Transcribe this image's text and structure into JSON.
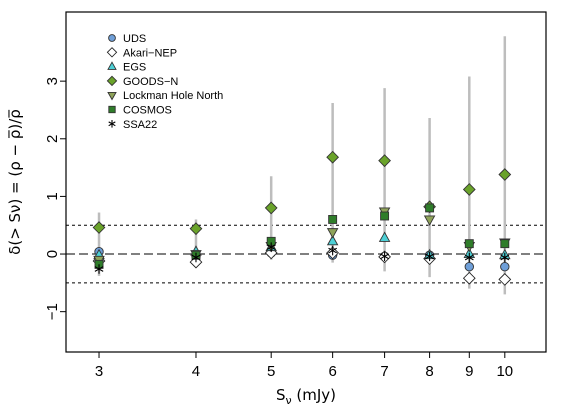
{
  "chart_data": {
    "type": "scatter",
    "title": "",
    "xlabel_main": "S",
    "xlabel_sub": "ν",
    "xlabel_rest": " (mJy)",
    "ylabel": "δ(> Sν) = (ρ − ρ̅)/ρ̅",
    "x_scale": "log",
    "xlim": [
      2.72,
      11.3
    ],
    "ylim": [
      -1.7,
      4.2
    ],
    "x_ticks": [
      3,
      4,
      5,
      6,
      7,
      8,
      9,
      10
    ],
    "x_tick_labels": [
      "3",
      "4",
      "5",
      "6",
      "7",
      "8",
      "9",
      "10"
    ],
    "y_ticks": [
      -1,
      0,
      1,
      2,
      3
    ],
    "y_tick_labels": [
      "−1",
      "0",
      "1",
      "2",
      "3"
    ],
    "reference_lines": [
      {
        "y": 0.5,
        "style": "dotted"
      },
      {
        "y": -0.5,
        "style": "dotted"
      },
      {
        "y": 0,
        "style": "dashed"
      }
    ],
    "legend_position": "top-left",
    "error_bars": [
      {
        "x": 3,
        "low": -0.38,
        "high": 0.72
      },
      {
        "x": 4,
        "low": -0.22,
        "high": 0.6
      },
      {
        "x": 5,
        "low": -0.1,
        "high": 1.35
      },
      {
        "x": 6,
        "low": -0.15,
        "high": 2.62
      },
      {
        "x": 7,
        "low": -0.3,
        "high": 2.88
      },
      {
        "x": 8,
        "low": -0.4,
        "high": 2.36
      },
      {
        "x": 9,
        "low": -0.6,
        "high": 3.08
      },
      {
        "x": 10,
        "low": -0.7,
        "high": 3.78
      }
    ],
    "series": [
      {
        "name": "UDS",
        "marker": "circle",
        "color": "#6f9fd8",
        "x": [
          3,
          4,
          5,
          6,
          7,
          8,
          9,
          10
        ],
        "y": [
          0.04,
          -0.04,
          0.02,
          -0.02,
          -0.04,
          -0.02,
          -0.22,
          -0.22
        ]
      },
      {
        "name": "Akari−NEP",
        "marker": "diamond-open",
        "color": "#ffffff",
        "x": [
          3,
          4,
          5,
          6,
          7,
          8,
          9,
          10
        ],
        "y": [
          -0.12,
          -0.14,
          0.02,
          0.02,
          -0.05,
          -0.08,
          -0.42,
          -0.44
        ]
      },
      {
        "name": "EGS",
        "marker": "triangle-up",
        "color": "#4dd0d6",
        "x": [
          3,
          4,
          5,
          6,
          7,
          8,
          9,
          10
        ],
        "y": [
          -0.02,
          0.04,
          0.12,
          0.22,
          0.28,
          -0.02,
          0.0,
          -0.02
        ]
      },
      {
        "name": "GOODS−N",
        "marker": "diamond",
        "color": "#6aa32a",
        "x": [
          3,
          4,
          5,
          6,
          7,
          8,
          9,
          10
        ],
        "y": [
          0.46,
          0.44,
          0.8,
          1.68,
          1.62,
          0.82,
          1.12,
          1.38
        ]
      },
      {
        "name": "Lockman Hole North",
        "marker": "triangle-down",
        "color": "#8fa35a",
        "x": [
          3,
          4,
          5,
          6,
          7,
          8,
          9,
          10
        ],
        "y": [
          -0.1,
          0.0,
          0.14,
          0.38,
          0.74,
          0.6,
          0.14,
          0.2
        ]
      },
      {
        "name": "COSMOS",
        "marker": "square",
        "color": "#2f7d2a",
        "x": [
          3,
          4,
          5,
          6,
          7,
          8,
          9,
          10
        ],
        "y": [
          -0.18,
          -0.02,
          0.22,
          0.6,
          0.66,
          0.8,
          0.18,
          0.18
        ]
      },
      {
        "name": "SSA22",
        "marker": "asterisk",
        "color": "#000000",
        "x": [
          3,
          4,
          5,
          6,
          7,
          8,
          9,
          10
        ],
        "y": [
          -0.26,
          -0.06,
          0.12,
          0.06,
          -0.04,
          -0.04,
          -0.06,
          -0.06
        ]
      }
    ]
  }
}
